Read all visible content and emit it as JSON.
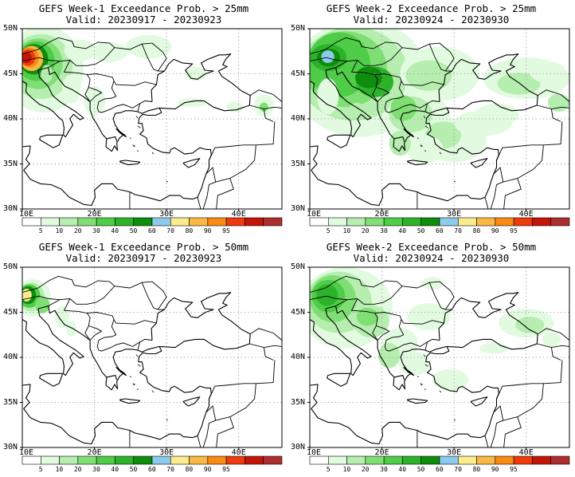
{
  "panels": [
    {
      "line1": "GEFS Week-1 Exceedance Prob. > 25mm",
      "line2": "Valid: 20230917 - 20230923",
      "scenario": "w1_25"
    },
    {
      "line1": "GEFS Week-2 Exceedance Prob. > 25mm",
      "line2": "Valid: 20230924 - 20230930",
      "scenario": "w2_25"
    },
    {
      "line1": "GEFS Week-1 Exceedance Prob. > 50mm",
      "line2": "Valid: 20230917 - 20230923",
      "scenario": "w1_50"
    },
    {
      "line1": "GEFS Week-2 Exceedance Prob. > 50mm",
      "line2": "Valid: 20230924 - 20230930",
      "scenario": "w2_50"
    }
  ],
  "map": {
    "lon_range": [
      10,
      46
    ],
    "lat_range": [
      30,
      50
    ],
    "lon_ticks": [
      {
        "label": "10E",
        "value": 10
      },
      {
        "label": "20E",
        "value": 20
      },
      {
        "label": "30E",
        "value": 30
      },
      {
        "label": "40E",
        "value": 40
      }
    ],
    "lat_ticks": [
      {
        "label": "50N",
        "value": 50
      },
      {
        "label": "45N",
        "value": 45
      },
      {
        "label": "40N",
        "value": 40
      },
      {
        "label": "35N",
        "value": 35
      },
      {
        "label": "30N",
        "value": 30
      }
    ],
    "grid": true
  },
  "colorbar": {
    "labels": [
      "5",
      "10",
      "20",
      "30",
      "40",
      "50",
      "60",
      "70",
      "80",
      "90",
      "95"
    ],
    "colors": [
      "#ffffff",
      "#e2fbe0",
      "#b5eeae",
      "#7fdf74",
      "#4fcc48",
      "#2db32a",
      "#0d8d0b",
      "#8ccbeb",
      "#fbec8e",
      "#fbb844",
      "#f98a12",
      "#ef3a0c",
      "#c41508",
      "#ad2e2e"
    ]
  }
}
